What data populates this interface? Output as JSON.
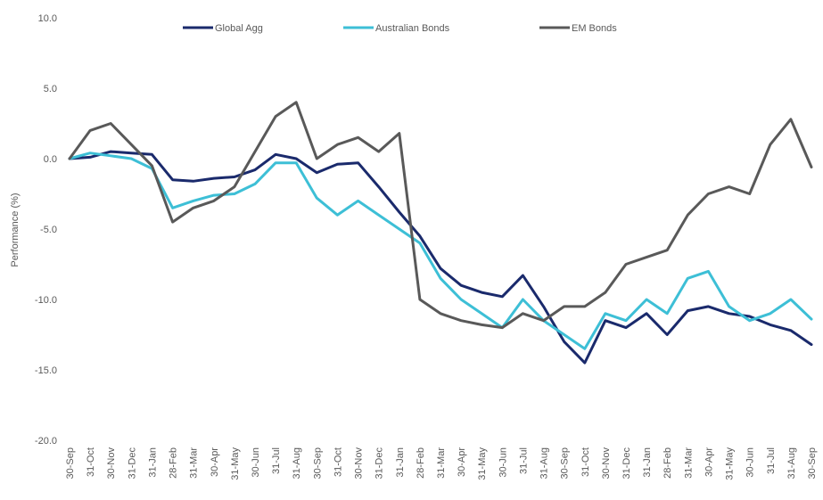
{
  "chart_data": {
    "type": "line",
    "title": "",
    "xlabel": "",
    "ylabel": "Performance (%)",
    "ylim": [
      -20,
      10
    ],
    "yticks": [
      10,
      5,
      0,
      -5,
      -10,
      -15,
      -20
    ],
    "ytick_labels": [
      "10.0",
      "5.0",
      "0.0",
      "-5.0",
      "-10.0",
      "-15.0",
      "-20.0"
    ],
    "grid": false,
    "legend_position": "top",
    "categories": [
      "30-Sep",
      "31-Oct",
      "30-Nov",
      "31-Dec",
      "31-Jan",
      "28-Feb",
      "31-Mar",
      "30-Apr",
      "31-May",
      "30-Jun",
      "31-Jul",
      "31-Aug",
      "30-Sep",
      "31-Oct",
      "30-Nov",
      "31-Dec",
      "31-Jan",
      "28-Feb",
      "31-Mar",
      "30-Apr",
      "31-May",
      "30-Jun",
      "31-Jul",
      "31-Aug",
      "30-Sep",
      "31-Oct",
      "30-Nov",
      "31-Dec",
      "31-Jan",
      "28-Feb",
      "31-Mar",
      "30-Apr",
      "31-May",
      "30-Jun",
      "31-Jul",
      "31-Aug",
      "30-Sep"
    ],
    "series": [
      {
        "name": "Global Agg",
        "color": "#1a2a6c",
        "values": [
          0.0,
          0.1,
          0.5,
          0.4,
          0.3,
          -1.5,
          -1.6,
          -1.4,
          -1.3,
          -0.8,
          0.3,
          0.0,
          -1.0,
          -0.4,
          -0.3,
          -2.0,
          -3.8,
          -5.5,
          -7.8,
          -9.0,
          -9.5,
          -9.8,
          -8.3,
          -10.5,
          -13.0,
          -14.5,
          -11.5,
          -12.0,
          -11.0,
          -12.5,
          -10.8,
          -10.5,
          -11.0,
          -11.2,
          -11.8,
          -12.2,
          -13.2
        ]
      },
      {
        "name": "Australian Bonds",
        "color": "#3dbfd6",
        "values": [
          0.0,
          0.4,
          0.2,
          0.0,
          -0.7,
          -3.5,
          -3.0,
          -2.6,
          -2.5,
          -1.8,
          -0.3,
          -0.3,
          -2.8,
          -4.0,
          -3.0,
          -4.0,
          -5.0,
          -6.0,
          -8.5,
          -10.0,
          -11.0,
          -12.0,
          -10.0,
          -11.5,
          -12.5,
          -13.5,
          -11.0,
          -11.5,
          -10.0,
          -11.0,
          -8.5,
          -8.0,
          -10.5,
          -11.5,
          -11.0,
          -10.0,
          -11.4
        ]
      },
      {
        "name": "EM Bonds",
        "color": "#595959",
        "values": [
          0.0,
          2.0,
          2.5,
          1.0,
          -0.5,
          -4.5,
          -3.5,
          -3.0,
          -2.0,
          0.5,
          3.0,
          4.0,
          0.0,
          1.0,
          1.5,
          0.5,
          1.8,
          -10.0,
          -11.0,
          -11.5,
          -11.8,
          -12.0,
          -11.0,
          -11.5,
          -10.5,
          -10.5,
          -9.5,
          -7.5,
          -7.0,
          -6.5,
          -4.0,
          -2.5,
          -2.0,
          -2.5,
          1.0,
          2.8,
          -0.6
        ]
      }
    ]
  }
}
